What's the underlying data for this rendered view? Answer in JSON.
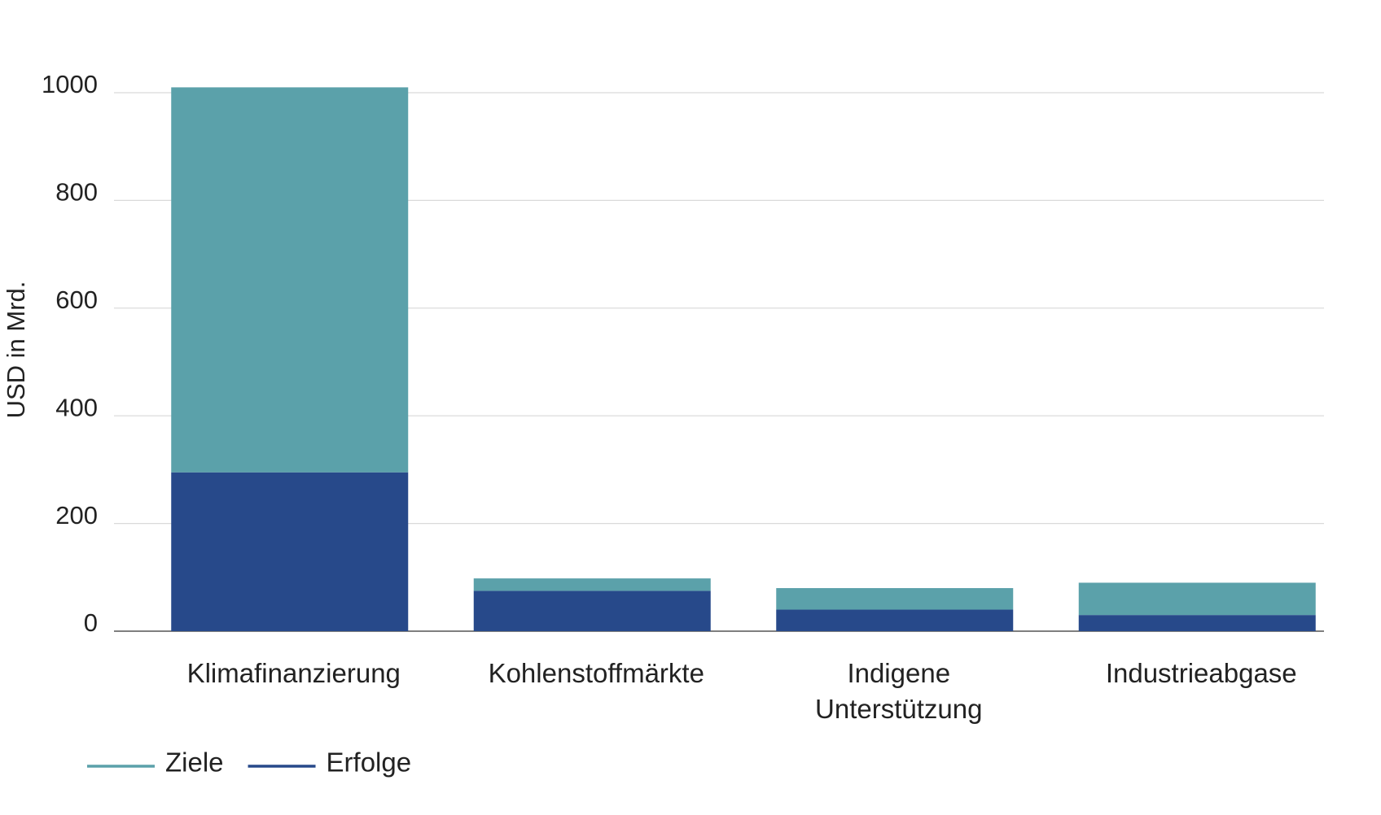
{
  "chart_data": {
    "type": "stacked_bar",
    "y_label": "USD in Mrd.",
    "categories": [
      "Klimafinanzierung",
      "Kohlenstoffmärkte",
      "Indigene Unterstützung",
      "Industrieabgase"
    ],
    "series": [
      {
        "name": "Ziele",
        "color": "#5ba1aa",
        "values": [
          715,
          23,
          40,
          60
        ]
      },
      {
        "name": "Erfolge",
        "color": "#27498a",
        "values": [
          295,
          75,
          40,
          30
        ]
      }
    ],
    "ylim": [
      0,
      1000
    ],
    "yticks": [
      0,
      200,
      400,
      600,
      800,
      1000
    ],
    "grid": true
  }
}
